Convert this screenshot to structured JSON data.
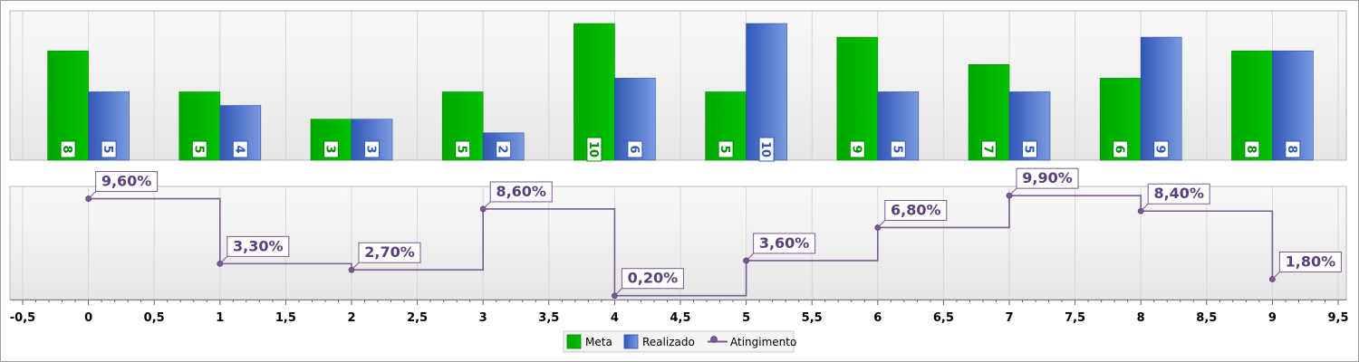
{
  "chart_data": [
    {
      "type": "bar",
      "x": [
        0,
        1,
        2,
        3,
        4,
        5,
        6,
        7,
        8,
        9
      ],
      "series": [
        {
          "name": "Meta",
          "values": [
            8,
            5,
            3,
            5,
            10,
            5,
            9,
            7,
            6,
            8
          ],
          "color": "#00b400"
        },
        {
          "name": "Realizado",
          "values": [
            5,
            4,
            3,
            2,
            6,
            10,
            5,
            5,
            9,
            8
          ],
          "color": "#3a63c0"
        }
      ],
      "ylim": [
        0,
        10
      ]
    },
    {
      "type": "line",
      "step": true,
      "x": [
        0,
        1,
        2,
        3,
        4,
        5,
        6,
        7,
        8,
        9
      ],
      "series": [
        {
          "name": "Atingimento",
          "values": [
            9.6,
            3.3,
            2.7,
            8.6,
            0.2,
            3.6,
            6.8,
            9.9,
            8.4,
            1.8
          ],
          "labels": [
            "9,60%",
            "3,30%",
            "2,70%",
            "8,60%",
            "0,20%",
            "3,60%",
            "6,80%",
            "9,90%",
            "8,40%",
            "1,80%"
          ],
          "color": "#7a5a94"
        }
      ],
      "xlim": [
        -0.5,
        9.5
      ],
      "xticks": [
        "-0,5",
        "0",
        "0,5",
        "1",
        "1,5",
        "2",
        "2,5",
        "3",
        "3,5",
        "4",
        "4,5",
        "5",
        "5,5",
        "6",
        "6,5",
        "7",
        "7,5",
        "8",
        "8,5",
        "9",
        "9,5"
      ],
      "ylim": [
        0,
        10
      ],
      "grid": true
    }
  ],
  "legend": {
    "position": "bottom-center",
    "items": [
      "Meta",
      "Realizado",
      "Atingimento"
    ]
  }
}
